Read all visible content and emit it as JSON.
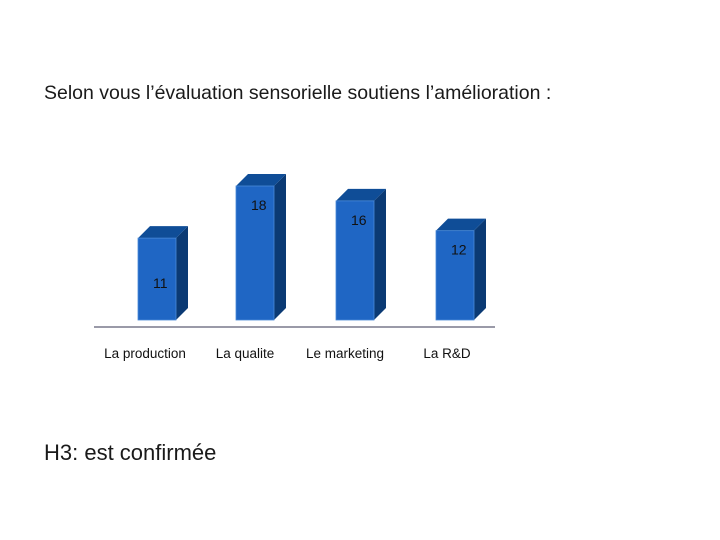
{
  "title": "Selon vous l’évaluation sensorielle soutiens l’amélioration :",
  "conclusion": "H3: est confirmée",
  "colors": {
    "bar_front": "#1f66c4",
    "bar_side": "#0b3a74",
    "bar_top": "#0f4d97",
    "baseline": "#9a9aa8"
  },
  "chart_data": {
    "type": "bar",
    "style": "3d-column",
    "categories": [
      "La production",
      "La qualite",
      "Le marketing",
      "La R&D"
    ],
    "values": [
      11,
      18,
      16,
      12
    ],
    "data_labels": [
      "11",
      "18",
      "16",
      "12"
    ],
    "title": "",
    "xlabel": "",
    "ylabel": "",
    "ylim": [
      0,
      18
    ],
    "grid": false,
    "legend": "none"
  }
}
